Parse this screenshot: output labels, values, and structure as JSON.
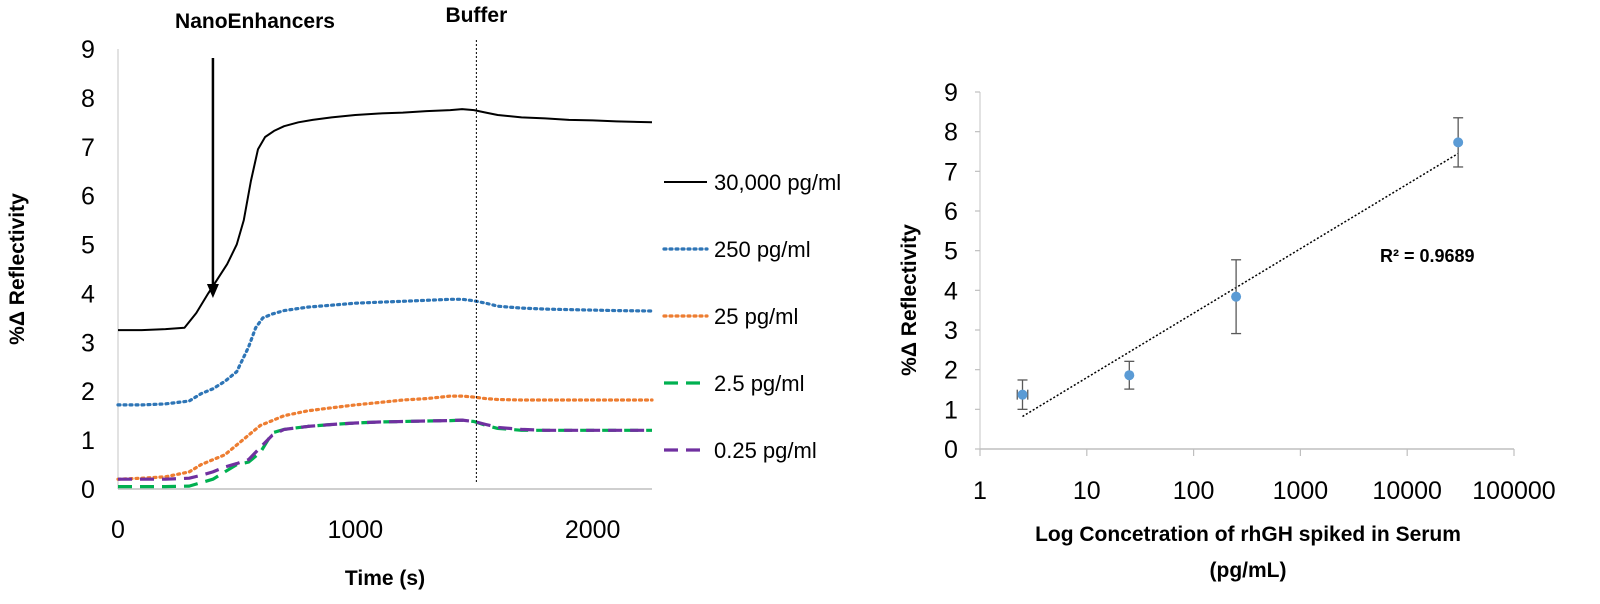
{
  "chart_data": [
    {
      "type": "line",
      "title": "",
      "xlabel": "Time (s)",
      "ylabel": "%Δ Reflectivity",
      "xlim": [
        0,
        2250
      ],
      "ylim": [
        0,
        9
      ],
      "x_ticks": [
        0,
        1000,
        2000
      ],
      "y_ticks": [
        0,
        1,
        2,
        3,
        4,
        5,
        6,
        7,
        8,
        9
      ],
      "grid": false,
      "legend_position": "right",
      "annotations": [
        {
          "text": "NanoEnhancers",
          "x": 400,
          "type": "arrow"
        },
        {
          "text": "Buffer",
          "x": 1510,
          "type": "vertical-dotted-line"
        }
      ],
      "series": [
        {
          "name": "30,000 pg/ml",
          "color": "#000000",
          "style": "solid",
          "x": [
            0,
            100,
            200,
            280,
            330,
            380,
            420,
            460,
            500,
            530,
            560,
            590,
            620,
            660,
            700,
            760,
            820,
            900,
            1000,
            1100,
            1200,
            1300,
            1400,
            1450,
            1500,
            1550,
            1600,
            1700,
            1800,
            1900,
            2000,
            2100,
            2250
          ],
          "y": [
            3.25,
            3.25,
            3.27,
            3.3,
            3.6,
            4.0,
            4.3,
            4.6,
            5.0,
            5.5,
            6.3,
            6.95,
            7.2,
            7.33,
            7.42,
            7.5,
            7.55,
            7.6,
            7.65,
            7.68,
            7.7,
            7.73,
            7.75,
            7.77,
            7.75,
            7.7,
            7.65,
            7.6,
            7.58,
            7.55,
            7.54,
            7.52,
            7.5
          ]
        },
        {
          "name": "250 pg/ml",
          "color": "#2E75B6",
          "style": "dotted",
          "x": [
            0,
            100,
            200,
            300,
            350,
            400,
            450,
            500,
            550,
            580,
            610,
            650,
            700,
            800,
            900,
            1000,
            1100,
            1200,
            1300,
            1400,
            1450,
            1500,
            1550,
            1600,
            1700,
            1800,
            1900,
            2000,
            2100,
            2250
          ],
          "y": [
            1.72,
            1.72,
            1.74,
            1.8,
            1.95,
            2.05,
            2.2,
            2.4,
            2.9,
            3.3,
            3.5,
            3.58,
            3.65,
            3.72,
            3.76,
            3.8,
            3.82,
            3.84,
            3.86,
            3.88,
            3.88,
            3.85,
            3.8,
            3.74,
            3.7,
            3.68,
            3.67,
            3.66,
            3.65,
            3.64
          ]
        },
        {
          "name": "25 pg/ml",
          "color": "#ED7D31",
          "style": "dotted",
          "x": [
            0,
            100,
            200,
            300,
            350,
            400,
            450,
            500,
            550,
            600,
            650,
            700,
            800,
            900,
            1000,
            1100,
            1200,
            1300,
            1400,
            1450,
            1500,
            1550,
            1600,
            1700,
            1800,
            1900,
            2000,
            2100,
            2250
          ],
          "y": [
            0.2,
            0.22,
            0.25,
            0.35,
            0.5,
            0.6,
            0.7,
            0.9,
            1.1,
            1.3,
            1.4,
            1.5,
            1.6,
            1.66,
            1.72,
            1.77,
            1.82,
            1.85,
            1.9,
            1.9,
            1.88,
            1.85,
            1.83,
            1.82,
            1.82,
            1.82,
            1.82,
            1.82,
            1.82
          ]
        },
        {
          "name": "2.5 pg/ml",
          "color": "#00B050",
          "style": "dashed",
          "x": [
            0,
            100,
            200,
            300,
            400,
            450,
            500,
            550,
            600,
            650,
            700,
            800,
            900,
            1000,
            1100,
            1200,
            1300,
            1400,
            1450,
            1500,
            1550,
            1600,
            1700,
            1800,
            1900,
            2000,
            2100,
            2250
          ],
          "y": [
            0.05,
            0.05,
            0.05,
            0.06,
            0.2,
            0.35,
            0.5,
            0.55,
            0.75,
            1.15,
            1.22,
            1.28,
            1.32,
            1.35,
            1.37,
            1.38,
            1.39,
            1.4,
            1.41,
            1.38,
            1.3,
            1.24,
            1.2,
            1.2,
            1.2,
            1.2,
            1.2,
            1.2
          ]
        },
        {
          "name": "0.25 pg/ml",
          "color": "#7030A0",
          "style": "dashed",
          "x": [
            0,
            100,
            200,
            300,
            350,
            400,
            450,
            500,
            550,
            600,
            650,
            700,
            800,
            900,
            1000,
            1100,
            1200,
            1300,
            1400,
            1450,
            1500,
            1550,
            1600,
            1700,
            1800,
            1900,
            2000,
            2100,
            2250
          ],
          "y": [
            0.2,
            0.2,
            0.2,
            0.22,
            0.28,
            0.35,
            0.45,
            0.52,
            0.6,
            0.85,
            1.1,
            1.22,
            1.28,
            1.32,
            1.35,
            1.37,
            1.38,
            1.39,
            1.4,
            1.41,
            1.38,
            1.32,
            1.26,
            1.22,
            1.2,
            1.2,
            1.2,
            1.2,
            1.2
          ]
        }
      ]
    },
    {
      "type": "scatter",
      "title": "",
      "xlabel": "Log Concetration of rhGH spiked in Serum (pg/mL)",
      "xlabel_lines": [
        "Log Concetration of rhGH spiked in Serum",
        "(pg/mL)"
      ],
      "ylabel": "%Δ Reflectivity",
      "xscale": "log",
      "xlim": [
        1,
        100000
      ],
      "ylim": [
        0,
        9
      ],
      "x_ticks": [
        1,
        10,
        100,
        1000,
        10000,
        100000
      ],
      "x_tick_labels": [
        "1",
        "10",
        "100",
        "1000",
        "10000",
        "100000"
      ],
      "y_ticks": [
        0,
        1,
        2,
        3,
        4,
        5,
        6,
        7,
        8,
        9
      ],
      "grid": false,
      "marker_color": "#5B9BD5",
      "points": [
        {
          "x": 2.5,
          "y": 1.37,
          "y_err": 0.37,
          "x_err_factor": 1.12
        },
        {
          "x": 25,
          "y": 1.86,
          "y_err": 0.35
        },
        {
          "x": 250,
          "y": 3.84,
          "y_err": 0.93
        },
        {
          "x": 30000,
          "y": 7.73,
          "y_err": 0.62
        }
      ],
      "trendline": {
        "type": "log",
        "style": "dotted",
        "color": "#000000",
        "x": [
          2.5,
          30000
        ],
        "y": [
          0.82,
          7.45
        ]
      },
      "r_squared_label": "R² = 0.9689"
    }
  ]
}
